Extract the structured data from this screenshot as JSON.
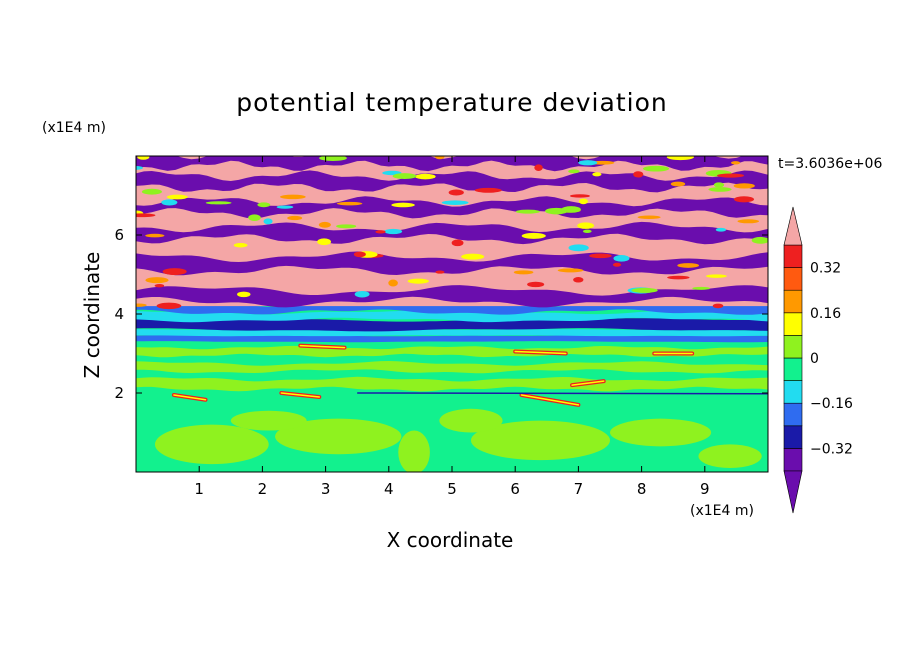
{
  "chart_data": {
    "type": "heatmap",
    "title": "potential temperature deviation",
    "xlabel": "X coordinate",
    "ylabel": "Z coordinate",
    "x_unit": "(x1E4 m)",
    "z_unit": "(x1E4 m)",
    "time_label": "t=3.6036e+06",
    "xlim": [
      0,
      10
    ],
    "ylim": [
      0,
      8
    ],
    "x_ticks": [
      1,
      2,
      3,
      4,
      5,
      6,
      7,
      8,
      9
    ],
    "y_ticks": [
      2,
      4,
      6
    ],
    "colorbar": {
      "levels": [
        -0.4,
        -0.32,
        -0.24,
        -0.16,
        -0.08,
        0,
        0.08,
        0.16,
        0.24,
        0.32,
        0.4
      ],
      "tick_labels": [
        "0.32",
        "0.16",
        "0",
        "−0.16",
        "−0.32"
      ],
      "tick_values": [
        0.32,
        0.16,
        0,
        -0.16,
        -0.32
      ],
      "colors": [
        "#6a0dad",
        "#1a1aa8",
        "#2f6cf0",
        "#22dcf0",
        "#12f18e",
        "#8ff21f",
        "#ffff00",
        "#ff9900",
        "#ff5a10",
        "#ee2020",
        "#f4a6a6"
      ],
      "extend": "both"
    },
    "bands": [
      {
        "z": [
          0.0,
          1.7
        ],
        "field": "green to lime (0 to 0.08)"
      },
      {
        "z": [
          1.7,
          2.1
        ],
        "field": "mixed with warm streaks"
      },
      {
        "z": [
          2.1,
          3.3
        ],
        "field": "green to lime"
      },
      {
        "z": [
          3.3,
          4.2
        ],
        "field": "blue to cyan layers"
      },
      {
        "z": [
          4.2,
          8.0
        ],
        "field": "alternating pink (>0.4) and purple (<-0.4)"
      }
    ]
  }
}
